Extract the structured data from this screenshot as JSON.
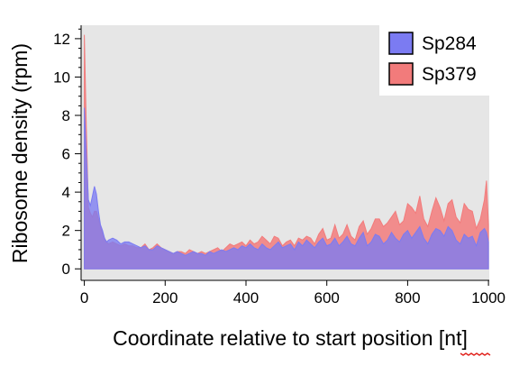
{
  "chart_data": {
    "type": "area",
    "xlabel": "Coordinate relative to start position [nt]",
    "ylabel": "Ribosome density (rpm)",
    "xlim": [
      -8,
      1002
    ],
    "ylim": [
      -0.6,
      12.7
    ],
    "xticks": [
      0,
      200,
      400,
      600,
      800,
      1000
    ],
    "yticks": [
      0,
      2,
      4,
      6,
      8,
      10,
      12
    ],
    "y_minor_step": 0.5,
    "legend_position": "top-right",
    "plot_background": "#e6e6e6",
    "x": [
      0,
      5,
      10,
      15,
      20,
      25,
      30,
      35,
      40,
      45,
      50,
      55,
      60,
      70,
      80,
      90,
      100,
      110,
      120,
      130,
      140,
      150,
      160,
      170,
      180,
      190,
      200,
      210,
      220,
      230,
      240,
      250,
      260,
      270,
      280,
      290,
      300,
      310,
      320,
      330,
      340,
      350,
      360,
      370,
      380,
      390,
      400,
      410,
      420,
      430,
      440,
      450,
      460,
      470,
      480,
      490,
      500,
      510,
      520,
      530,
      540,
      550,
      560,
      570,
      580,
      590,
      600,
      610,
      620,
      630,
      640,
      650,
      660,
      670,
      680,
      690,
      700,
      710,
      720,
      730,
      740,
      750,
      760,
      770,
      780,
      790,
      800,
      810,
      820,
      830,
      840,
      850,
      860,
      870,
      880,
      890,
      900,
      910,
      920,
      930,
      940,
      950,
      960,
      970,
      980,
      990,
      995,
      1000
    ],
    "series": [
      {
        "name": "Sp284",
        "color": "#7b7bf2",
        "values": [
          8.4,
          6.0,
          3.6,
          3.3,
          3.8,
          4.3,
          3.9,
          3.0,
          2.3,
          2.0,
          1.6,
          1.4,
          1.5,
          1.6,
          1.5,
          1.3,
          1.4,
          1.4,
          1.3,
          1.2,
          1.1,
          1.2,
          1.0,
          1.0,
          1.2,
          1.1,
          1.0,
          0.9,
          0.8,
          0.9,
          0.8,
          0.7,
          0.8,
          0.9,
          0.8,
          0.8,
          0.7,
          0.9,
          0.8,
          0.9,
          1.0,
          0.9,
          1.0,
          1.1,
          1.0,
          1.2,
          1.1,
          1.3,
          1.1,
          1.0,
          1.3,
          1.1,
          1.0,
          1.2,
          1.4,
          1.1,
          1.2,
          1.3,
          1.0,
          1.4,
          1.2,
          1.5,
          1.3,
          1.1,
          1.4,
          1.6,
          1.2,
          1.3,
          1.6,
          1.2,
          1.4,
          1.7,
          1.3,
          1.2,
          1.6,
          1.9,
          1.2,
          1.4,
          1.8,
          1.7,
          1.3,
          1.5,
          1.9,
          1.6,
          1.4,
          1.8,
          2.0,
          1.6,
          1.9,
          2.2,
          1.6,
          1.3,
          1.8,
          2.1,
          2.0,
          1.7,
          2.2,
          2.0,
          1.5,
          1.3,
          1.8,
          1.6,
          1.7,
          1.2,
          1.9,
          2.1,
          1.9,
          1.4
        ]
      },
      {
        "name": "Sp379",
        "color": "#f27b7b",
        "values": [
          12.2,
          7.4,
          3.2,
          2.9,
          2.7,
          3.0,
          3.0,
          2.6,
          2.2,
          1.9,
          1.6,
          1.4,
          1.3,
          1.4,
          1.3,
          1.2,
          1.3,
          1.2,
          1.2,
          1.1,
          1.1,
          1.3,
          1.0,
          1.1,
          1.3,
          1.1,
          1.0,
          0.9,
          0.8,
          0.9,
          0.9,
          0.8,
          1.0,
          0.9,
          0.8,
          0.9,
          0.8,
          0.9,
          1.0,
          1.1,
          0.9,
          1.1,
          1.3,
          1.2,
          1.3,
          1.4,
          1.2,
          1.5,
          1.3,
          1.4,
          1.7,
          1.5,
          1.3,
          1.7,
          1.6,
          1.2,
          1.4,
          1.5,
          1.2,
          1.6,
          1.5,
          1.7,
          1.6,
          1.3,
          1.8,
          2.1,
          1.5,
          1.6,
          2.3,
          1.6,
          1.8,
          2.3,
          1.7,
          1.5,
          2.2,
          2.5,
          1.8,
          2.1,
          2.6,
          2.6,
          2.2,
          2.4,
          2.7,
          3.0,
          2.3,
          2.5,
          3.4,
          3.2,
          2.9,
          3.8,
          2.6,
          2.2,
          3.0,
          3.7,
          3.2,
          2.5,
          3.4,
          3.6,
          2.7,
          2.4,
          3.4,
          3.1,
          3.0,
          2.1,
          2.6,
          3.6,
          4.6,
          2.3
        ]
      }
    ]
  }
}
